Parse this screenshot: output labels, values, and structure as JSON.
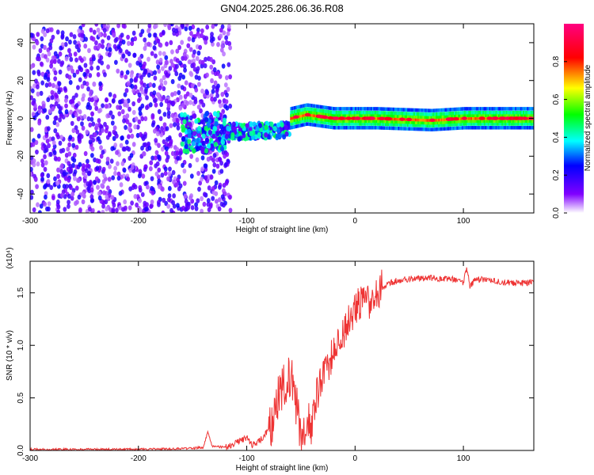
{
  "title": "GN04.2025.286.06.36.R08",
  "chart_data": [
    {
      "type": "heatmap",
      "xlabel": "Height of straight line (km)",
      "ylabel": "Frequency (Hz)",
      "xlim": [
        -300,
        165
      ],
      "ylim": [
        -50,
        50
      ],
      "xticks": [
        -300,
        -200,
        -100,
        0,
        100
      ],
      "xtick_labels": [
        "-300",
        "-200",
        "-100",
        "0",
        "100"
      ],
      "yticks": [
        -40,
        -20,
        0,
        20,
        40
      ],
      "ytick_labels": [
        "-40",
        "-20",
        "0",
        "20",
        "40"
      ],
      "grid": false,
      "description_series": [
        {
          "region": "broadband noise",
          "x_range": [
            -300,
            -115
          ],
          "freq_range": [
            -50,
            50
          ],
          "amplitude": [
            0.05,
            0.25
          ]
        },
        {
          "region": "transition cluster",
          "x_range": [
            -160,
            -60
          ],
          "freq_range": [
            -20,
            5
          ],
          "amplitude": [
            0.1,
            0.5
          ]
        },
        {
          "region": "narrowband line",
          "x_range": [
            -60,
            165
          ],
          "freq_center": [
            0,
            2,
            0,
            0,
            -1,
            0,
            0
          ],
          "freq_center_x": [
            -60,
            -45,
            -20,
            20,
            70,
            100,
            165
          ],
          "amplitude": [
            0.4,
            1.0
          ]
        }
      ],
      "colorbar": {
        "label": "Normalized spectral amplitude",
        "range": [
          0.0,
          1.0
        ],
        "ticks": [
          0.0,
          0.2,
          0.4,
          0.6,
          0.8
        ],
        "tick_labels": [
          "0.0",
          "0.2",
          "0.4",
          "0.6",
          "0.8"
        ],
        "colormap": [
          "#ffffff",
          "#8000ff",
          "#0000ff",
          "#00ffff",
          "#00ff00",
          "#ffff00",
          "#ff0000",
          "#ff0080"
        ]
      }
    },
    {
      "type": "line",
      "xlabel": "Height of straight line (km)",
      "ylabel": "SNR (10 * v/v)",
      "multiplier_label": "(x10⁴)",
      "xlim": [
        -300,
        165
      ],
      "ylim": [
        0,
        1.8
      ],
      "xticks": [
        -300,
        -200,
        -100,
        0,
        100
      ],
      "xtick_labels": [
        "-300",
        "-200",
        "-100",
        "0",
        "100"
      ],
      "yticks": [
        0.0,
        0.5,
        1.0,
        1.5
      ],
      "ytick_labels": [
        "0.0",
        "0.5",
        "1.0",
        "1.5"
      ],
      "grid": false,
      "series": [
        {
          "color": "#ee3333",
          "x": [
            -300,
            -250,
            -200,
            -150,
            -140,
            -136,
            -132,
            -120,
            -110,
            -100,
            -95,
            -90,
            -85,
            -80,
            -75,
            -70,
            -65,
            -60,
            -55,
            -50,
            -45,
            -40,
            -35,
            -30,
            -25,
            -20,
            -15,
            -10,
            -5,
            0,
            5,
            10,
            15,
            20,
            25,
            30,
            40,
            50,
            60,
            70,
            80,
            90,
            100,
            103,
            106,
            110,
            120,
            130,
            140,
            150,
            165
          ],
          "y": [
            0.01,
            0.01,
            0.01,
            0.02,
            0.03,
            0.18,
            0.04,
            0.03,
            0.07,
            0.12,
            0.05,
            0.08,
            0.12,
            0.2,
            0.3,
            0.55,
            0.65,
            0.72,
            0.5,
            0.1,
            0.3,
            0.2,
            0.55,
            0.75,
            0.8,
            0.95,
            1.05,
            1.15,
            1.25,
            1.35,
            1.4,
            1.38,
            1.45,
            1.5,
            1.55,
            1.58,
            1.62,
            1.63,
            1.64,
            1.64,
            1.63,
            1.63,
            1.6,
            1.75,
            1.55,
            1.62,
            1.63,
            1.61,
            1.6,
            1.59,
            1.6
          ]
        }
      ]
    }
  ]
}
